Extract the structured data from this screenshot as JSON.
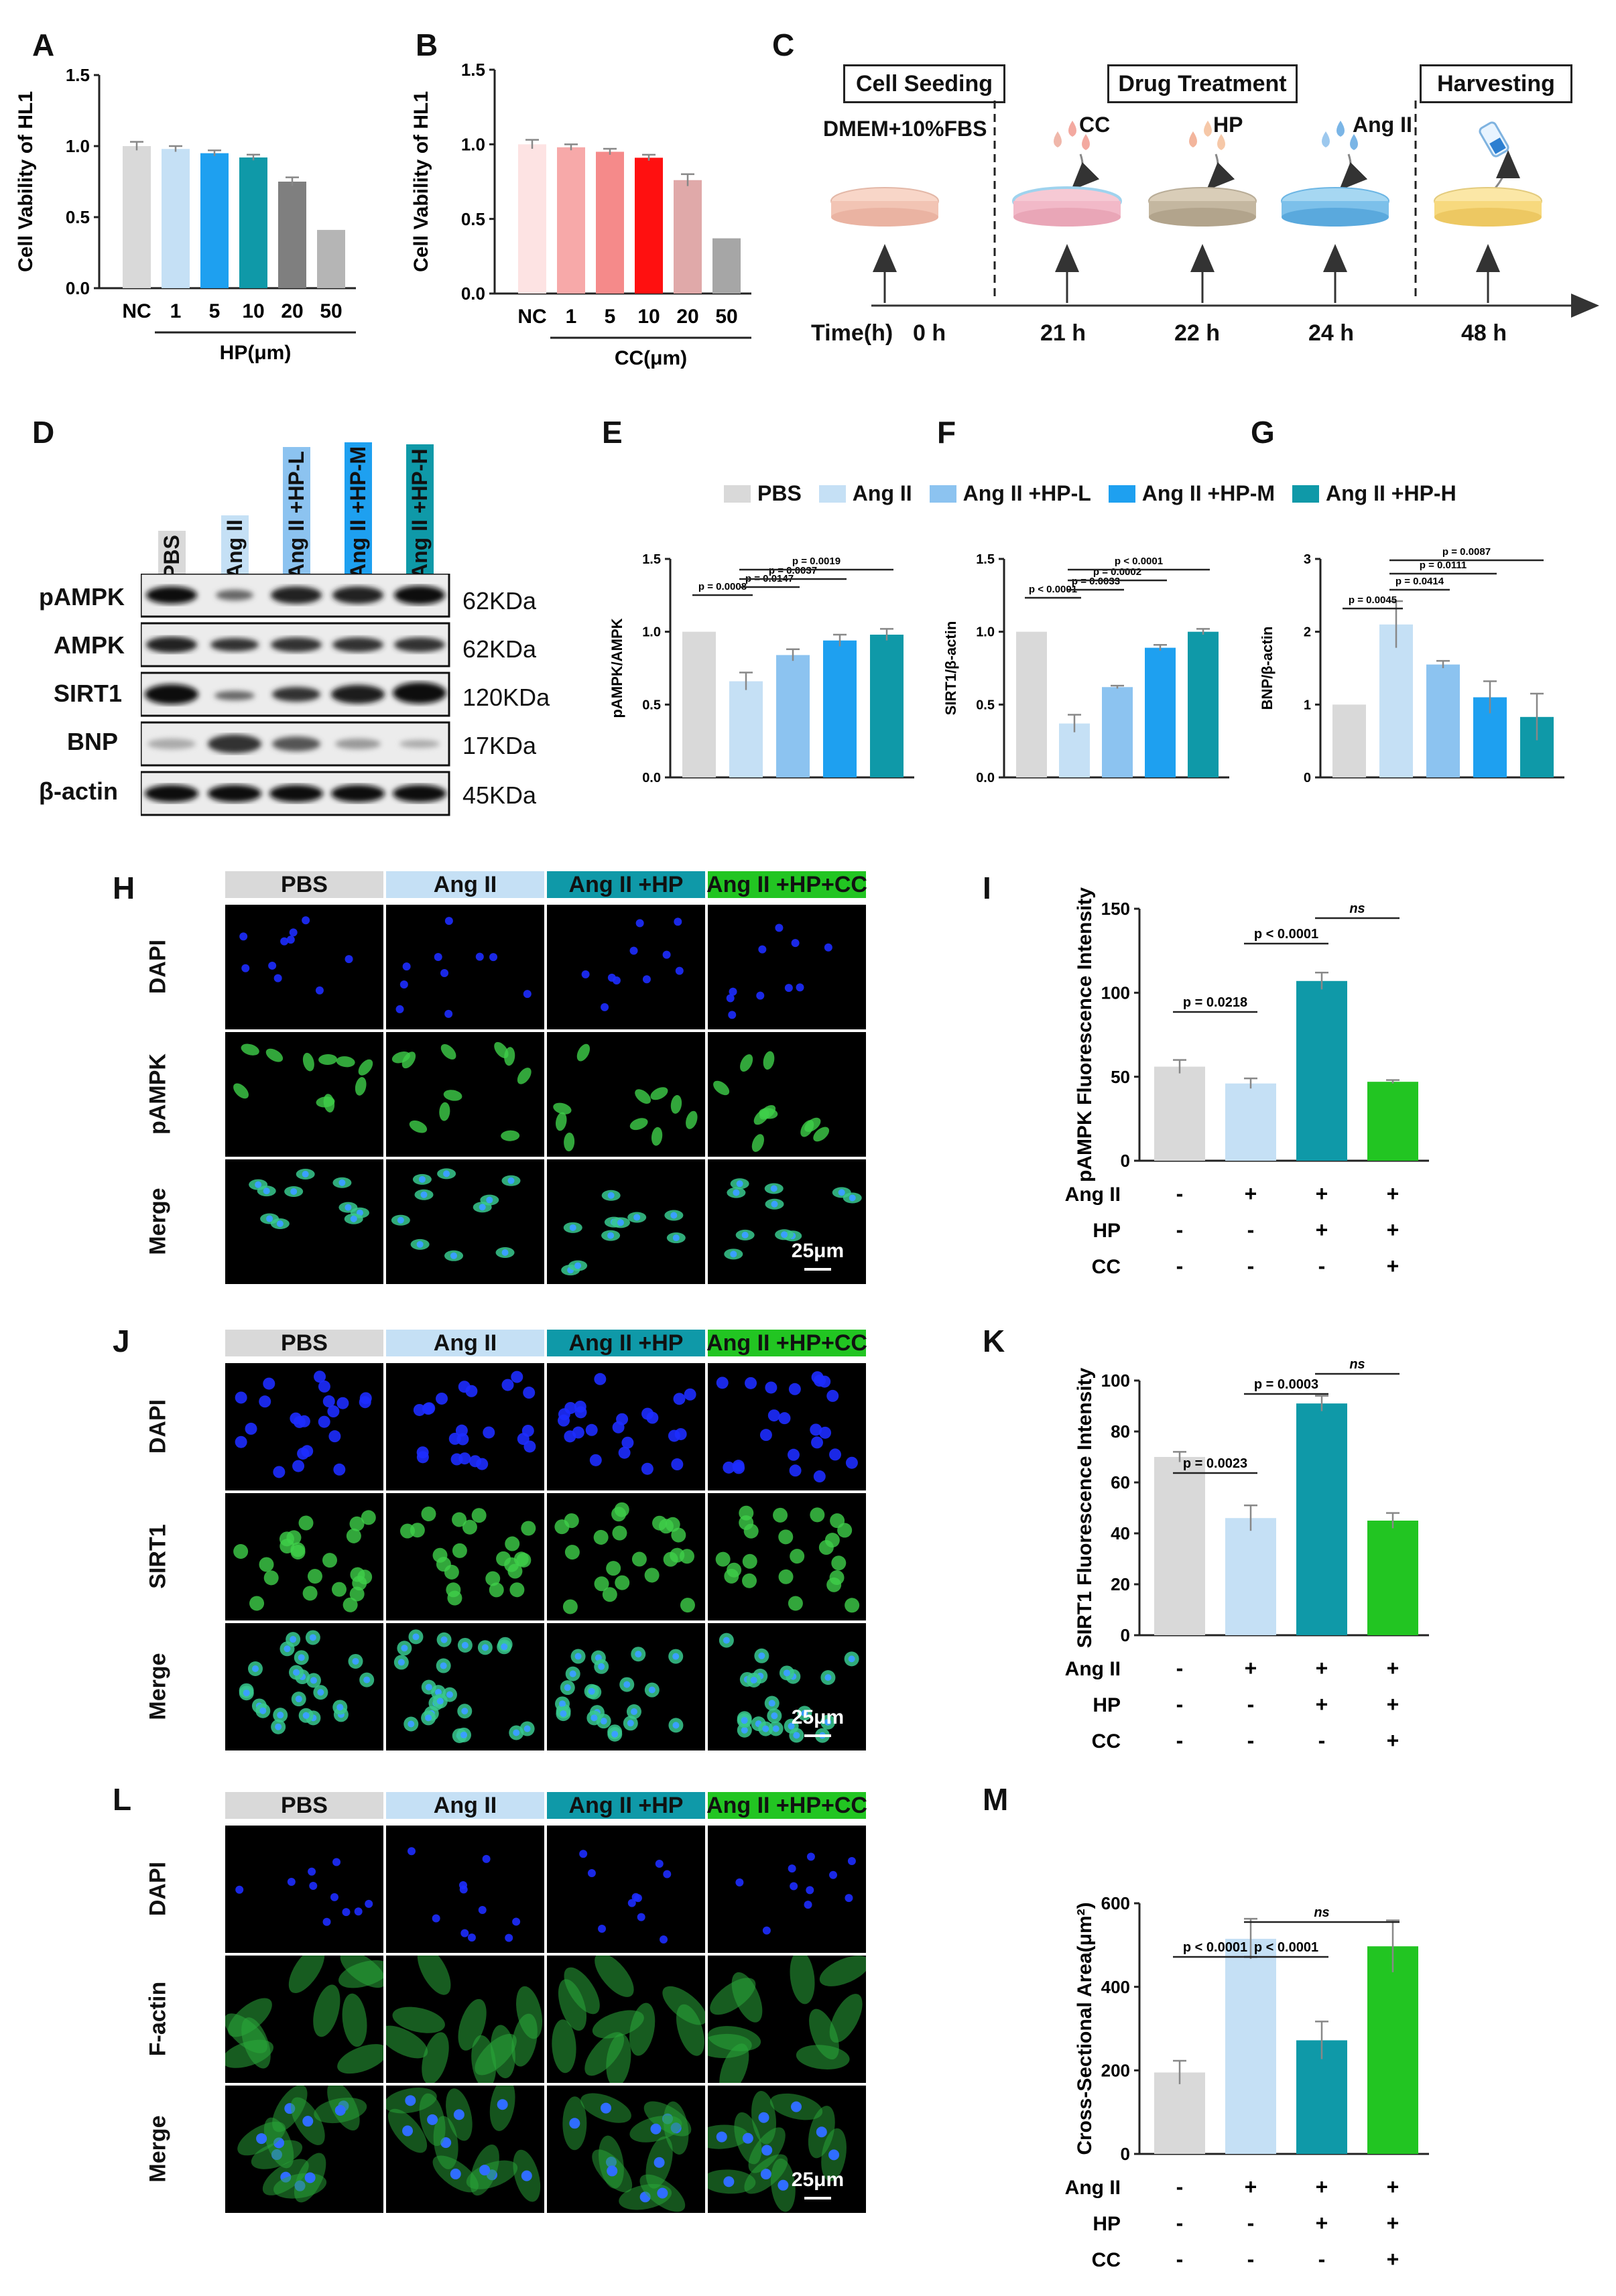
{
  "panels": {
    "A": "A",
    "B": "B",
    "C": "C",
    "D": "D",
    "E": "E",
    "F": "F",
    "G": "G",
    "H": "H",
    "I": "I",
    "J": "J",
    "K": "K",
    "L": "L",
    "M": "M"
  },
  "colors": {
    "grey": "#d9d9d9",
    "lblue": "#c5e0f5",
    "mblue": "#8cc3f0",
    "blue": "#1ea0f0",
    "teal": "#0f99a8",
    "green": "#22c522",
    "dgrey": "#7f7f7f",
    "lgrey": "#b5b5b5",
    "pink1": "#fde3e3",
    "pink2": "#f7a9a9",
    "pink3": "#f58a8a",
    "red": "#ff1010",
    "pink4": "#e0a9a9",
    "grey2": "#a6a6a6"
  },
  "chart_data": [
    {
      "id": "A",
      "type": "bar",
      "ylabel": "Cell Vability of HL1",
      "xlabel": "HP(μm)",
      "categories": [
        "NC",
        "1",
        "5",
        "10",
        "20",
        "50"
      ],
      "values": [
        1.0,
        0.98,
        0.95,
        0.92,
        0.75,
        0.41
      ],
      "errors": [
        0.03,
        0.02,
        0.02,
        0.02,
        0.03,
        0
      ],
      "ylim": [
        0,
        1.5
      ],
      "yticks": [
        "0.0",
        "0.5",
        "1.0",
        "1.5"
      ]
    },
    {
      "id": "B",
      "type": "bar",
      "ylabel": "Cell Vability of HL1",
      "xlabel": "CC(μm)",
      "categories": [
        "NC",
        "1",
        "5",
        "10",
        "20",
        "50"
      ],
      "values": [
        1.0,
        0.98,
        0.95,
        0.91,
        0.76,
        0.37
      ],
      "errors": [
        0.03,
        0.02,
        0.02,
        0.02,
        0.04,
        0
      ],
      "ylim": [
        0,
        1.5
      ],
      "yticks": [
        "0.0",
        "0.5",
        "1.0",
        "1.5"
      ]
    },
    {
      "id": "E",
      "type": "bar",
      "ylabel": "pAMPK/AMPK",
      "categories": [
        "PBS",
        "Ang II",
        "Ang II +HP-L",
        "Ang II +HP-M",
        "Ang II +HP-H"
      ],
      "values": [
        1.0,
        0.66,
        0.84,
        0.94,
        0.98
      ],
      "errors": [
        0,
        0.06,
        0.04,
        0.04,
        0.04
      ],
      "ylim": [
        0,
        1.5
      ],
      "yticks": [
        "0.0",
        "0.5",
        "1.0",
        "1.5"
      ],
      "annotations": [
        "p = 0.0008",
        "p = 0.0147",
        "p = 0.0037",
        "p = 0.0019"
      ]
    },
    {
      "id": "F",
      "type": "bar",
      "ylabel": "SIRT1/β-actin",
      "categories": [
        "PBS",
        "Ang II",
        "Ang II +HP-L",
        "Ang II +HP-M",
        "Ang II +HP-H"
      ],
      "values": [
        1.0,
        0.37,
        0.62,
        0.89,
        1.0
      ],
      "errors": [
        0,
        0.06,
        0.01,
        0.02,
        0.02
      ],
      "ylim": [
        0,
        1.5
      ],
      "yticks": [
        "0.0",
        "0.5",
        "1.0",
        "1.5"
      ],
      "annotations": [
        "p < 0.0001",
        "p = 0.0033",
        "p = 0.0002",
        "p < 0.0001"
      ]
    },
    {
      "id": "G",
      "type": "bar",
      "ylabel": "BNP/β-actin",
      "categories": [
        "PBS",
        "Ang II",
        "Ang II +HP-L",
        "Ang II +HP-M",
        "Ang II +HP-H"
      ],
      "values": [
        1.0,
        2.1,
        1.55,
        1.1,
        0.83
      ],
      "errors": [
        0,
        0.32,
        0.05,
        0.22,
        0.32
      ],
      "ylim": [
        0,
        3
      ],
      "yticks": [
        "0",
        "1",
        "2",
        "3"
      ],
      "annotations": [
        "p = 0.0045",
        "p = 0.0414",
        "p = 0.0111",
        "p = 0.0087"
      ]
    },
    {
      "id": "I",
      "type": "bar",
      "ylabel": "pAMPK Fluorescence Intensity",
      "values": [
        56,
        46,
        107,
        47
      ],
      "errors": [
        4,
        3,
        5,
        1
      ],
      "ylim": [
        0,
        150
      ],
      "yticks": [
        "0",
        "50",
        "100",
        "150"
      ],
      "annotations": [
        "p = 0.0218",
        "p < 0.0001",
        "ns"
      ]
    },
    {
      "id": "K",
      "type": "bar",
      "ylabel": "SIRT1 Fluorescence Intensity",
      "values": [
        70,
        46,
        91,
        45
      ],
      "errors": [
        2,
        5,
        3,
        3
      ],
      "ylim": [
        0,
        100
      ],
      "yticks": [
        "0",
        "20",
        "40",
        "60",
        "80",
        "100"
      ],
      "annotations": [
        "p = 0.0023",
        "p = 0.0003",
        "ns"
      ]
    },
    {
      "id": "M",
      "type": "bar",
      "ylabel": "Cross-Sectional Area(μm²)",
      "values": [
        195,
        515,
        272,
        497
      ],
      "errors": [
        28,
        48,
        45,
        62
      ],
      "ylim": [
        0,
        600
      ],
      "yticks": [
        "0",
        "200",
        "400",
        "600"
      ],
      "annotations": [
        "p < 0.0001",
        "p < 0.0001",
        "ns"
      ]
    }
  ],
  "legend": {
    "pbs": "PBS",
    "ang": "Ang II",
    "hpl": "Ang II +HP-L",
    "hpm": "Ang II +HP-M",
    "hph": "Ang II +HP-H"
  },
  "treat_rows": [
    {
      "label": "Ang II",
      "signs": [
        "-",
        "+",
        "+",
        "+"
      ]
    },
    {
      "label": "HP",
      "signs": [
        "-",
        "-",
        "+",
        "+"
      ]
    },
    {
      "label": "CC",
      "signs": [
        "-",
        "-",
        "-",
        "+"
      ]
    }
  ],
  "timeline": {
    "cell_seeding": "Cell Seeding",
    "drug_treatment": "Drug Treatment",
    "harvesting": "Harvesting",
    "medium": "DMEM+10%FBS",
    "cc": "CC",
    "hp": "HP",
    "ang": "Ang II",
    "time_label": "Time(h)",
    "t0": "0 h",
    "t21": "21 h",
    "t22": "22 h",
    "t24": "24 h",
    "t48": "48 h"
  },
  "western": {
    "lanes": [
      "PBS",
      "Ang II",
      "Ang II +HP-L",
      "Ang II +HP-M",
      "Ang II +HP-H"
    ],
    "proteins": [
      "pAMPK",
      "AMPK",
      "SIRT1",
      "BNP",
      "β-actin"
    ],
    "sizes": [
      "62KDa",
      "62KDa",
      "120KDa",
      "17KDa",
      "45KDa"
    ]
  },
  "if_columns": [
    "PBS",
    "Ang II",
    "Ang II +HP",
    "Ang II +HP+CC"
  ],
  "h_rows": [
    "DAPI",
    "pAMPK",
    "Merge"
  ],
  "j_rows": [
    "DAPI",
    "SIRT1",
    "Merge"
  ],
  "l_rows": [
    "DAPI",
    "F-actin",
    "Merge"
  ],
  "scale_bar": "25μm"
}
